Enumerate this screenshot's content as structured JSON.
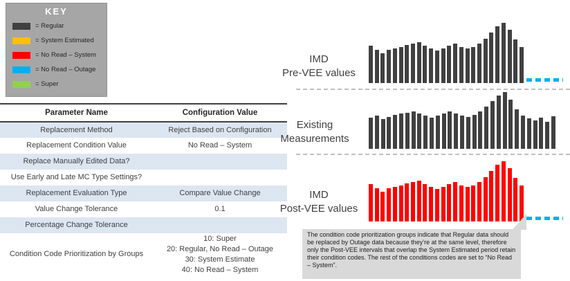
{
  "legend": {
    "title": "KEY",
    "items": [
      {
        "label": "= Regular",
        "color": "#404040"
      },
      {
        "label": "= System Estimated",
        "color": "#ffc000"
      },
      {
        "label": "= No Read – System",
        "color": "#ff0000"
      },
      {
        "label": "= No Read – Outage",
        "color": "#00b0f0"
      },
      {
        "label": "= Super",
        "color": "#92d050"
      }
    ]
  },
  "table": {
    "headers": [
      "Parameter Name",
      "Configuration Value"
    ],
    "rows": [
      {
        "name": "Replacement Method",
        "value": "Reject Based on Configuration"
      },
      {
        "name": "Replacement Condition Value",
        "value": "No Read – System"
      },
      {
        "name": "Replace Manually Edited Data?",
        "value": ""
      },
      {
        "name": "Use Early and Late MC Type Settings?",
        "value": ""
      },
      {
        "name": "Replacement Evaluation Type",
        "value": "Compare Value Change"
      },
      {
        "name": "Value Change Tolerance",
        "value": "0.1"
      },
      {
        "name": "Percentage Change Tolerance",
        "value": ""
      },
      {
        "name": "Condition Code Prioritization by Groups",
        "value": "10: Super\n20: Regular, No Read – Outage\n30: System Estimate\n40: No Read – System"
      }
    ]
  },
  "chart_data": [
    {
      "type": "bar",
      "title": "IMD\nPre-VEE values",
      "bar_color": "#404040",
      "ylim": [
        0,
        100
      ],
      "values": [
        62,
        55,
        50,
        55,
        58,
        60,
        63,
        66,
        68,
        62,
        58,
        54,
        58,
        62,
        65,
        60,
        57,
        60,
        66,
        74,
        84,
        94,
        100,
        88,
        72,
        60
      ],
      "tail": {
        "present": true,
        "style": "dashed",
        "color": "#00b0f0"
      }
    },
    {
      "type": "bar",
      "title": "Existing\nMeasurements",
      "bar_color": "#404040",
      "ylim": [
        0,
        100
      ],
      "values": [
        55,
        58,
        52,
        56,
        60,
        62,
        64,
        66,
        62,
        58,
        55,
        58,
        62,
        66,
        62,
        58,
        56,
        60,
        66,
        74,
        84,
        94,
        100,
        86,
        70,
        58,
        54,
        50,
        55,
        48,
        57
      ],
      "tail": {
        "present": false
      }
    },
    {
      "type": "bar",
      "title": "IMD\nPost-VEE values",
      "bar_color": "#ff0000",
      "ylim": [
        0,
        100
      ],
      "values": [
        62,
        55,
        50,
        55,
        58,
        60,
        63,
        66,
        68,
        62,
        58,
        54,
        58,
        62,
        65,
        60,
        57,
        60,
        66,
        74,
        84,
        94,
        100,
        88,
        72,
        60
      ],
      "tail": {
        "present": true,
        "style": "dashed",
        "color": "#00b0f0"
      }
    }
  ],
  "callout": {
    "text": "The condition code prioritization groups indicate that Regular data should be replaced by Outage data because they’re at the same level, therefore only the Post-VEE intervals that overlap the System Estimated period retain their condition codes.  The rest of the conditions codes are set to “No Read – System”."
  }
}
